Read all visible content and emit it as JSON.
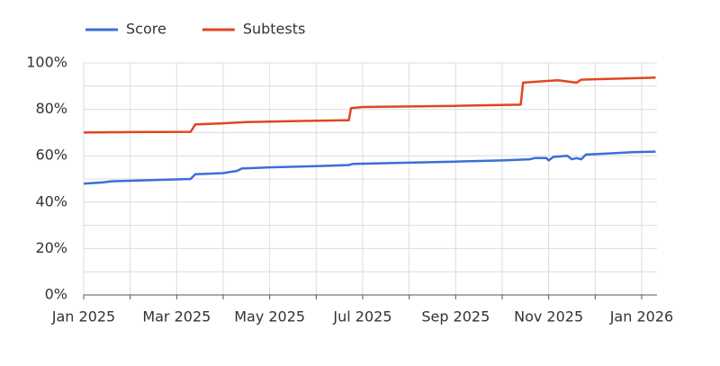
{
  "chart_data": {
    "type": "line",
    "x_unit": "months since Jan 2025",
    "xlim": [
      0,
      12.33
    ],
    "xticks": [
      {
        "value": 0,
        "label": "Jan 2025"
      },
      {
        "value": 2,
        "label": "Mar 2025"
      },
      {
        "value": 4,
        "label": "May 2025"
      },
      {
        "value": 6,
        "label": "Jul 2025"
      },
      {
        "value": 8,
        "label": "Sep 2025"
      },
      {
        "value": 10,
        "label": "Nov 2025"
      },
      {
        "value": 12,
        "label": "Jan 2026"
      }
    ],
    "minor_xticks": [
      1,
      3,
      5,
      7,
      9,
      11
    ],
    "ylim": [
      0,
      100
    ],
    "yticks": [
      {
        "value": 0,
        "label": "0%"
      },
      {
        "value": 20,
        "label": "20%"
      },
      {
        "value": 40,
        "label": "40%"
      },
      {
        "value": 60,
        "label": "60%"
      },
      {
        "value": 80,
        "label": "80%"
      },
      {
        "value": 100,
        "label": "100%"
      }
    ],
    "minor_yticks": [
      10,
      30,
      50,
      70,
      90
    ],
    "grid": true,
    "legend": "top-left",
    "series": [
      {
        "name": "Score",
        "color": "#3a6fd8",
        "x": [
          0,
          0.4,
          0.6,
          1.5,
          2.3,
          2.4,
          3.0,
          3.3,
          3.4,
          4.0,
          5.0,
          5.7,
          5.8,
          7.0,
          8.0,
          9.0,
          9.6,
          9.7,
          9.95,
          10.0,
          10.1,
          10.4,
          10.5,
          10.6,
          10.7,
          10.8,
          11.3,
          11.8,
          12.3
        ],
        "values": [
          48,
          48.5,
          49,
          49.5,
          50,
          52,
          52.5,
          53.5,
          54.5,
          55,
          55.5,
          56,
          56.5,
          57,
          57.5,
          58,
          58.5,
          59,
          59,
          58,
          59.5,
          60,
          58.5,
          59,
          58.5,
          60.5,
          61,
          61.5,
          61.8
        ]
      },
      {
        "name": "Subtests",
        "color": "#e0461f",
        "x": [
          0,
          1.0,
          2.3,
          2.4,
          3.0,
          3.5,
          4.7,
          5.7,
          5.75,
          6.0,
          8.0,
          9.4,
          9.45,
          9.8,
          10.2,
          10.6,
          10.7,
          11.0,
          12.0,
          12.3
        ],
        "values": [
          70,
          70.2,
          70.3,
          73.5,
          74,
          74.5,
          75,
          75.3,
          80.5,
          81,
          81.5,
          82,
          91.5,
          92,
          92.5,
          91.5,
          92.8,
          93,
          93.5,
          93.7
        ]
      }
    ]
  }
}
